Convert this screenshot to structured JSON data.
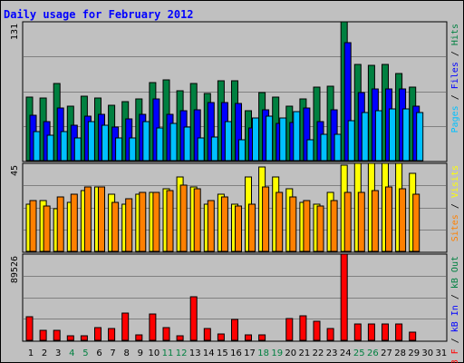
{
  "title": "Daily usage for February 2012",
  "colors": {
    "background": "#c0c0c0",
    "title": "#0000ff",
    "pages": "#00c0ff",
    "files": "#0000ff",
    "hits": "#008040",
    "visits": "#ffff00",
    "sites": "#ff8000",
    "kb_in": "#0000ff",
    "kb_out": "#008040",
    "kb_f": "#ff0000",
    "weekend_day": "#008040",
    "weekday_day": "#000000"
  },
  "panel_labels": {
    "top": [
      {
        "text": "Pages",
        "color_key": "pages"
      },
      {
        "text": " / ",
        "color_key": "weekday_day"
      },
      {
        "text": "Files",
        "color_key": "files"
      },
      {
        "text": " / ",
        "color_key": "weekday_day"
      },
      {
        "text": "Hits",
        "color_key": "hits"
      }
    ],
    "middle": [
      {
        "text": "Sites",
        "color_key": "sites"
      },
      {
        "text": " / ",
        "color_key": "weekday_day"
      },
      {
        "text": "Visits",
        "color_key": "visits"
      }
    ],
    "bottom": [
      {
        "text": "kB F",
        "color_key": "kb_f"
      },
      {
        "text": " / ",
        "color_key": "weekday_day"
      },
      {
        "text": "kB In",
        "color_key": "kb_in"
      },
      {
        "text": " / ",
        "color_key": "weekday_day"
      },
      {
        "text": "kB Out",
        "color_key": "kb_out"
      }
    ]
  },
  "chart_data": {
    "type": "bar",
    "title": "Daily usage for February 2012",
    "categories": [
      "1",
      "2",
      "3",
      "4",
      "5",
      "6",
      "7",
      "8",
      "9",
      "10",
      "11",
      "12",
      "13",
      "14",
      "15",
      "16",
      "17",
      "18",
      "19",
      "20",
      "21",
      "22",
      "23",
      "24",
      "25",
      "26",
      "27",
      "28",
      "29",
      "30",
      "31"
    ],
    "weekend_days": [
      4,
      5,
      11,
      12,
      18,
      19,
      25,
      26
    ],
    "panels": [
      {
        "name": "hits-files-pages",
        "ymax": 131,
        "ymax_label": "131",
        "series": [
          {
            "name": "Hits",
            "color_key": "hits",
            "values": [
              60,
              59,
              73,
              51,
              61,
              59,
              52,
              56,
              58,
              74,
              76,
              66,
              73,
              63,
              75,
              75,
              47,
              64,
              60,
              51,
              58,
              69,
              70,
              131,
              91,
              90,
              91,
              82,
              69,
              null,
              null
            ]
          },
          {
            "name": "Files",
            "color_key": "files",
            "values": [
              43,
              37,
              50,
              33,
              42,
              44,
              32,
              39,
              44,
              58,
              44,
              47,
              48,
              55,
              55,
              54,
              31,
              48,
              35,
              36,
              50,
              37,
              48,
              111,
              64,
              68,
              68,
              68,
              51,
              null,
              null
            ]
          },
          {
            "name": "Pages",
            "color_key": "pages",
            "values": [
              27,
              24,
              27,
              21,
              37,
              33,
              21,
              21,
              37,
              31,
              35,
              32,
              21,
              22,
              37,
              20,
              40,
              42,
              40,
              46,
              20,
              25,
              25,
              38,
              45,
              47,
              49,
              49,
              45,
              null,
              null
            ]
          }
        ]
      },
      {
        "name": "visits-sites",
        "ymax": 45,
        "ymax_label": "45",
        "series": [
          {
            "name": "Visits",
            "color_key": "visits",
            "values": [
              24,
              26,
              22,
              25,
              31,
              33,
              29,
              24,
              29,
              30,
              32,
              38,
              33,
              24,
              29,
              24,
              38,
              43,
              38,
              32,
              25,
              24,
              30,
              44,
              45,
              45,
              45,
              45,
              40,
              null,
              null
            ]
          },
          {
            "name": "Sites",
            "color_key": "sites",
            "values": [
              26,
              23,
              28,
              29,
              33,
              33,
              25,
              27,
              30,
              30,
              31,
              34,
              32,
              26,
              28,
              23,
              24,
              33,
              30,
              28,
              26,
              23,
              26,
              30,
              30,
              31,
              33,
              32,
              29,
              null,
              null
            ]
          }
        ]
      },
      {
        "name": "kbf-kbin-kbout",
        "ymax": 89526,
        "ymax_label": "89526",
        "series": [
          {
            "name": "kB F",
            "color_key": "kb_f",
            "values": [
              24700,
              10800,
              10000,
              4900,
              4700,
              13500,
              12400,
              28300,
              5600,
              27200,
              13100,
              4300,
              45000,
              11900,
              6300,
              21600,
              6000,
              5600,
              0,
              22600,
              25700,
              19400,
              11900,
              89526,
              16900,
              16600,
              16900,
              16500,
              8300,
              null,
              null
            ]
          },
          {
            "name": "kB In",
            "color_key": "kb_in",
            "values": [
              0,
              0,
              0,
              0,
              0,
              0,
              0,
              0,
              0,
              0,
              0,
              0,
              0,
              0,
              0,
              0,
              0,
              0,
              0,
              0,
              0,
              0,
              0,
              0,
              0,
              0,
              0,
              0,
              0,
              null,
              null
            ]
          },
          {
            "name": "kB Out",
            "color_key": "kb_out",
            "values": [
              0,
              0,
              0,
              0,
              0,
              0,
              0,
              0,
              0,
              0,
              0,
              0,
              0,
              0,
              0,
              0,
              0,
              0,
              0,
              0,
              0,
              0,
              0,
              0,
              0,
              0,
              0,
              0,
              0,
              null,
              null
            ]
          }
        ]
      }
    ]
  }
}
